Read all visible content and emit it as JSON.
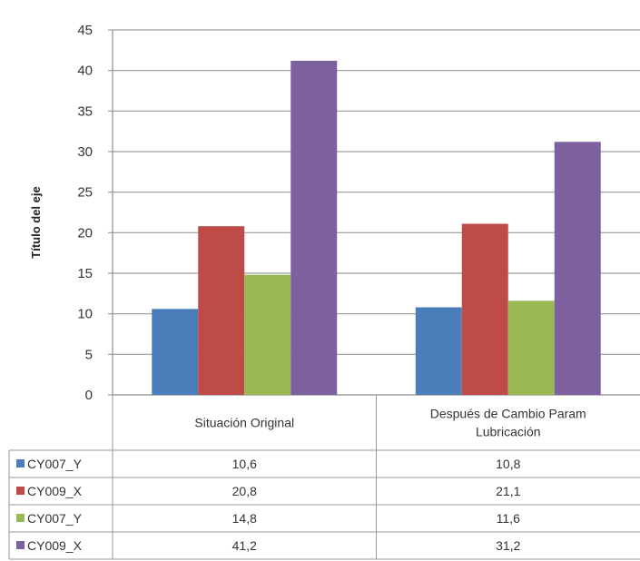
{
  "header": {
    "title": ""
  },
  "chart_data": {
    "type": "bar",
    "title": "",
    "ylabel": "Título del eje",
    "xlabel": "",
    "ylim": [
      0,
      45
    ],
    "yticks": [
      0,
      5,
      10,
      15,
      20,
      25,
      30,
      35,
      40,
      45
    ],
    "grid": true,
    "legend": "data-table-left",
    "categories": [
      "Situación Original",
      "Después de Cambio Param Lubricación"
    ],
    "series": [
      {
        "name": "CY007_Y",
        "color": "#4a7ebb",
        "values": [
          10.6,
          10.8
        ],
        "labels": [
          "10,6",
          "10,8"
        ]
      },
      {
        "name": "CY009_X",
        "color": "#be4b48",
        "values": [
          20.8,
          21.1
        ],
        "labels": [
          "20,8",
          "21,1"
        ]
      },
      {
        "name": "CY007_Y",
        "color": "#98b954",
        "values": [
          14.8,
          11.6
        ],
        "labels": [
          "14,8",
          "11,6"
        ]
      },
      {
        "name": "CY009_X",
        "color": "#7d60a0",
        "values": [
          41.2,
          31.2
        ],
        "labels": [
          "41,2",
          "31,2"
        ]
      }
    ]
  }
}
